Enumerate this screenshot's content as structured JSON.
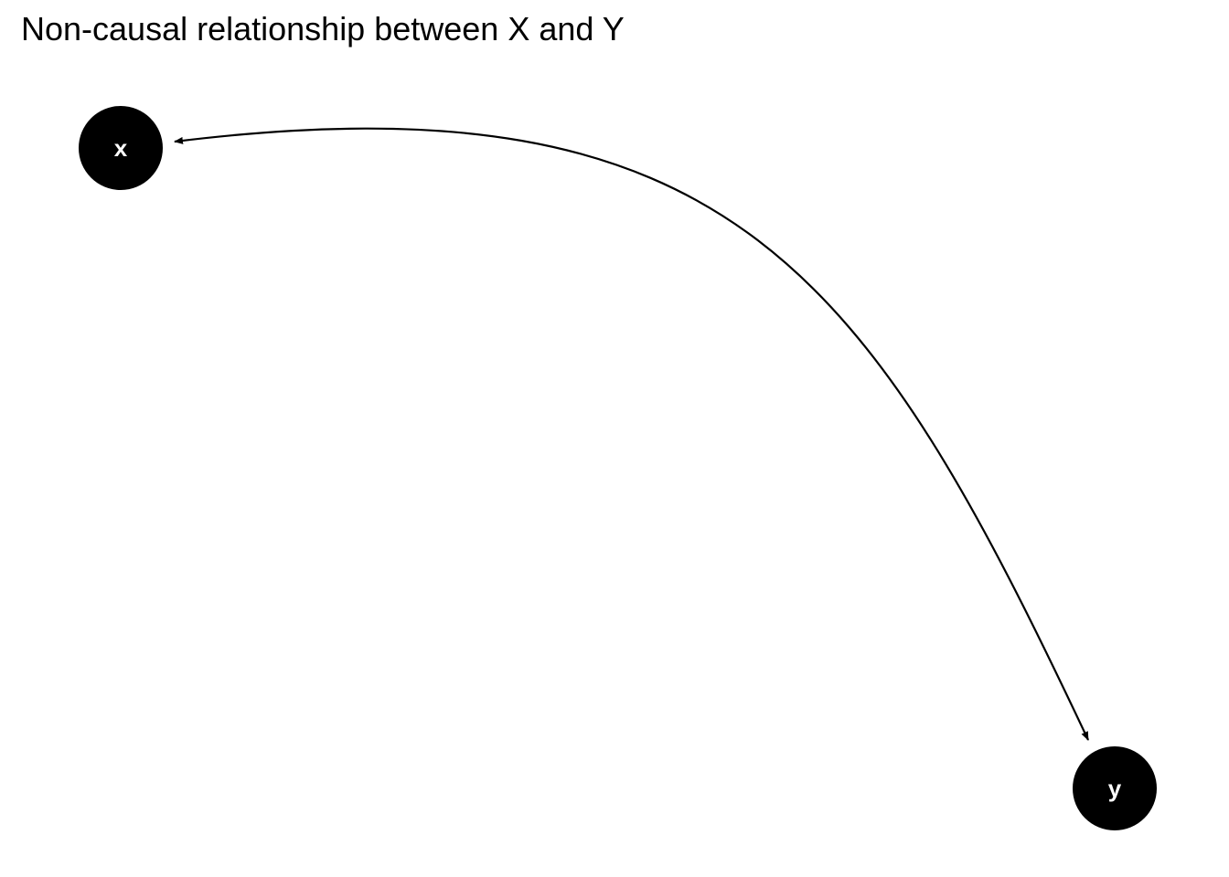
{
  "title": "Non-causal relationship between X and Y",
  "diagram": {
    "type": "dag",
    "node_fill": "#000000",
    "node_text_color": "#ffffff",
    "edge_color": "#000000",
    "nodes": [
      {
        "id": "x",
        "label": "x"
      },
      {
        "id": "y",
        "label": "y"
      }
    ],
    "edges": [
      {
        "from": "x",
        "to": "y",
        "style": "curved",
        "bidirected": true
      }
    ]
  }
}
